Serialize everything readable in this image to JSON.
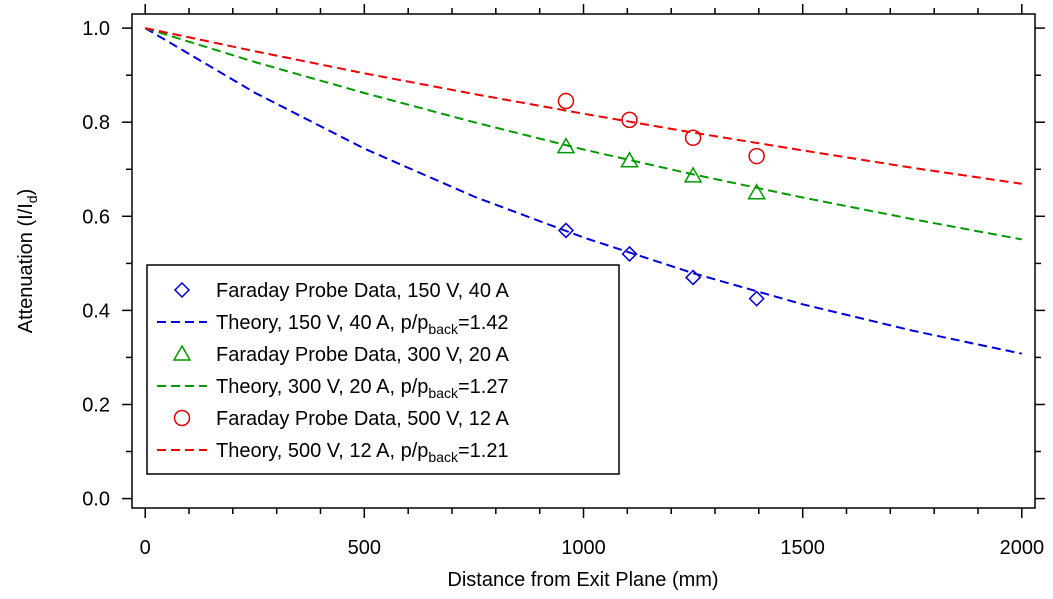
{
  "chart_data": {
    "type": "scatter",
    "xlabel": "Distance from Exit Plane (mm)",
    "ylabel": "Attenuation (I/I",
    "ylabel_sub": "d",
    "ylabel_end": ")",
    "xlim": [
      -30,
      2030
    ],
    "ylim": [
      -0.02,
      1.03
    ],
    "x_ticks": [
      0,
      500,
      1000,
      1500,
      2000
    ],
    "x_tick_labels": [
      "0",
      "500",
      "1000",
      "1500",
      "2000"
    ],
    "y_ticks": [
      0.0,
      0.2,
      0.4,
      0.6,
      0.8,
      1.0
    ],
    "y_tick_labels": [
      "0.0",
      "0.2",
      "0.4",
      "0.6",
      "0.8",
      "1.0"
    ],
    "grid": false,
    "legend_position": "bottom-left",
    "series": [
      {
        "kind": "markers",
        "marker": "diamond",
        "color": "#0000cc",
        "legend_text": "Faraday Probe Data, 150 V, 40 A",
        "x": [
          960,
          1105,
          1250,
          1395
        ],
        "y": [
          0.57,
          0.52,
          0.47,
          0.425
        ]
      },
      {
        "kind": "line",
        "color": "#0000dd",
        "legend_text": "Theory, 150 V, 40 A, p/p",
        "legend_sub": "back",
        "legend_end": "=1.42",
        "x": [
          0,
          250,
          500,
          750,
          1000,
          1250,
          1500,
          1750,
          2000
        ],
        "y": [
          1.0,
          0.863,
          0.744,
          0.642,
          0.555,
          0.479,
          0.413,
          0.357,
          0.308
        ]
      },
      {
        "kind": "markers",
        "marker": "triangle",
        "color": "#009900",
        "legend_text": "Faraday Probe Data, 300 V, 20 A",
        "x": [
          960,
          1105,
          1250,
          1395
        ],
        "y": [
          0.748,
          0.718,
          0.686,
          0.65
        ]
      },
      {
        "kind": "line",
        "color": "#009900",
        "legend_text": "Theory, 300 V, 20 A, p/p",
        "legend_sub": "back",
        "legend_end": "=1.27",
        "x": [
          0,
          250,
          500,
          750,
          1000,
          1250,
          1500,
          1750,
          2000
        ],
        "y": [
          1.0,
          0.928,
          0.862,
          0.8,
          0.742,
          0.689,
          0.64,
          0.594,
          0.551
        ]
      },
      {
        "kind": "markers",
        "marker": "circle",
        "color": "#dd0000",
        "legend_text": "Faraday Probe Data, 500 V, 12 A",
        "x": [
          960,
          1105,
          1250,
          1395
        ],
        "y": [
          0.845,
          0.805,
          0.767,
          0.728
        ]
      },
      {
        "kind": "line",
        "color": "#ee0000",
        "legend_text": "Theory, 500 V, 12 A, p/p",
        "legend_sub": "back",
        "legend_end": "=1.21",
        "x": [
          0,
          250,
          500,
          750,
          1000,
          1250,
          1500,
          1750,
          2000
        ],
        "y": [
          1.0,
          0.951,
          0.904,
          0.86,
          0.818,
          0.778,
          0.74,
          0.703,
          0.669
        ]
      }
    ]
  }
}
